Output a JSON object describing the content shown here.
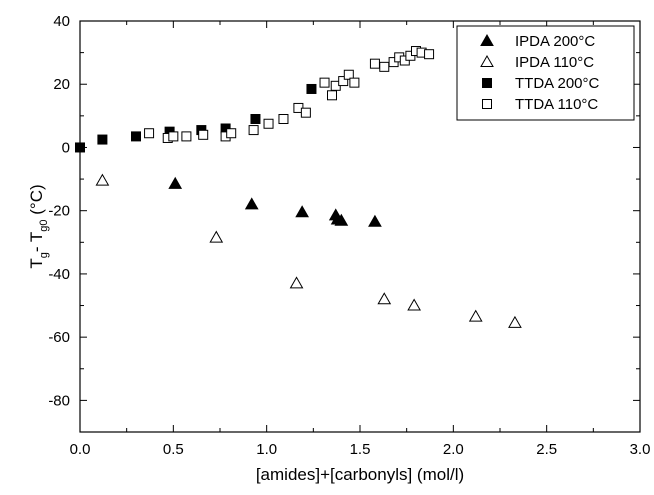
{
  "chart_data": {
    "type": "scatter",
    "xlabel": "[amides]+[carbonyls] (mol/l)",
    "ylabel": {
      "base": "T",
      "sub1": "g",
      "mid": "- T",
      "sub2": "g0",
      "unit": " (°C)"
    },
    "xlim": [
      0.0,
      3.0
    ],
    "ylim": [
      -90,
      40
    ],
    "xticks": [
      "0.0",
      "0.5",
      "1.0",
      "1.5",
      "2.0",
      "2.5",
      "3.0"
    ],
    "xtick_values": [
      0.0,
      0.5,
      1.0,
      1.5,
      2.0,
      2.5,
      3.0
    ],
    "yticks": [
      "40",
      "20",
      "0",
      "-20",
      "-40",
      "-60",
      "-80"
    ],
    "ytick_values": [
      40,
      20,
      0,
      -20,
      -40,
      -60,
      -80
    ],
    "grid": false,
    "legend_position": "top-right",
    "series": [
      {
        "name": "IPDA 200°C",
        "marker": "triangle-filled",
        "color": "#000000",
        "points": [
          [
            0.51,
            -11.5
          ],
          [
            0.92,
            -18.0
          ],
          [
            1.19,
            -20.5
          ],
          [
            1.37,
            -21.5
          ],
          [
            1.38,
            -22.8
          ],
          [
            1.4,
            -23.2
          ],
          [
            1.58,
            -23.5
          ]
        ]
      },
      {
        "name": "IPDA 110°C",
        "marker": "triangle-open",
        "color": "#000000",
        "points": [
          [
            0.12,
            -10.5
          ],
          [
            0.73,
            -28.5
          ],
          [
            1.16,
            -43.0
          ],
          [
            1.63,
            -48.0
          ],
          [
            1.79,
            -50.0
          ],
          [
            2.12,
            -53.5
          ],
          [
            2.33,
            -55.5
          ]
        ]
      },
      {
        "name": "TTDA 200°C",
        "marker": "square-filled",
        "color": "#000000",
        "points": [
          [
            0.0,
            0.0
          ],
          [
            0.12,
            2.5
          ],
          [
            0.3,
            3.5
          ],
          [
            0.48,
            5.0
          ],
          [
            0.65,
            5.5
          ],
          [
            0.78,
            6.0
          ],
          [
            0.94,
            9.0
          ],
          [
            1.24,
            18.5
          ]
        ]
      },
      {
        "name": "TTDA 110°C",
        "marker": "square-open",
        "color": "#000000",
        "points": [
          [
            0.37,
            4.5
          ],
          [
            0.47,
            3.0
          ],
          [
            0.5,
            3.5
          ],
          [
            0.57,
            3.5
          ],
          [
            0.66,
            4.0
          ],
          [
            0.78,
            3.5
          ],
          [
            0.81,
            4.5
          ],
          [
            0.93,
            5.5
          ],
          [
            1.01,
            7.5
          ],
          [
            1.09,
            9.0
          ],
          [
            1.17,
            12.5
          ],
          [
            1.21,
            11.0
          ],
          [
            1.31,
            20.5
          ],
          [
            1.35,
            16.5
          ],
          [
            1.37,
            19.5
          ],
          [
            1.41,
            21.0
          ],
          [
            1.44,
            23.0
          ],
          [
            1.47,
            20.5
          ],
          [
            1.58,
            26.5
          ],
          [
            1.63,
            25.5
          ],
          [
            1.68,
            27.0
          ],
          [
            1.71,
            28.5
          ],
          [
            1.74,
            27.5
          ],
          [
            1.77,
            29.0
          ],
          [
            1.8,
            30.5
          ],
          [
            1.83,
            30.0
          ],
          [
            1.87,
            29.5
          ]
        ]
      }
    ]
  }
}
